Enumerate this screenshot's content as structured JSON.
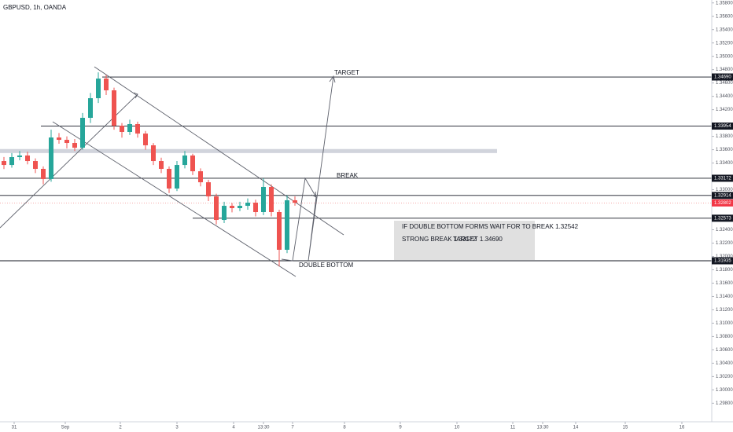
{
  "chart_data": {
    "type": "candlestick",
    "title": "GBPUSD, 1h, OANDA",
    "ylim": [
      1.29545,
      1.35844
    ],
    "xlim": [
      0,
      90.5
    ],
    "up_color": "#26a69a",
    "down_color": "#ef5350",
    "yticks": [
      {
        "value": 1.358,
        "label": "1.35800"
      },
      {
        "value": 1.356,
        "label": "1.35600"
      },
      {
        "value": 1.354,
        "label": "1.35400"
      },
      {
        "value": 1.352,
        "label": "1.35200"
      },
      {
        "value": 1.35,
        "label": "1.35000"
      },
      {
        "value": 1.348,
        "label": "1.34800"
      },
      {
        "value": 1.346,
        "label": "1.34600"
      },
      {
        "value": 1.344,
        "label": "1.34400"
      },
      {
        "value": 1.342,
        "label": "1.34200"
      },
      {
        "value": 1.338,
        "label": "1.33800"
      },
      {
        "value": 1.336,
        "label": "1.33600"
      },
      {
        "value": 1.334,
        "label": "1.33400"
      },
      {
        "value": 1.33,
        "label": "1.33000"
      },
      {
        "value": 1.324,
        "label": "1.32400"
      },
      {
        "value": 1.322,
        "label": "1.32200"
      },
      {
        "value": 1.32,
        "label": "1.32000"
      },
      {
        "value": 1.318,
        "label": "1.31800"
      },
      {
        "value": 1.316,
        "label": "1.31600"
      },
      {
        "value": 1.314,
        "label": "1.31400"
      },
      {
        "value": 1.312,
        "label": "1.31200"
      },
      {
        "value": 1.31,
        "label": "1.31000"
      },
      {
        "value": 1.308,
        "label": "1.30800"
      },
      {
        "value": 1.306,
        "label": "1.30600"
      },
      {
        "value": 1.304,
        "label": "1.30400"
      },
      {
        "value": 1.302,
        "label": "1.30200"
      },
      {
        "value": 1.3,
        "label": "1.30000"
      },
      {
        "value": 1.298,
        "label": "1.29800"
      }
    ],
    "xticks": [
      {
        "value": 1.8,
        "label": "31"
      },
      {
        "value": 8.3,
        "label": "Sep"
      },
      {
        "value": 15.3,
        "label": "2"
      },
      {
        "value": 22.5,
        "label": "3"
      },
      {
        "value": 29.7,
        "label": "4"
      },
      {
        "value": 33.5,
        "label": "13:30"
      },
      {
        "value": 37.2,
        "label": "7"
      },
      {
        "value": 43.8,
        "label": "8"
      },
      {
        "value": 50.9,
        "label": "9"
      },
      {
        "value": 58.1,
        "label": "10"
      },
      {
        "value": 65.2,
        "label": "11"
      },
      {
        "value": 69,
        "label": "13:30"
      },
      {
        "value": 73.2,
        "label": "14"
      },
      {
        "value": 79.5,
        "label": "15"
      },
      {
        "value": 86.7,
        "label": "16"
      }
    ],
    "candles": [
      {
        "open": 1.3343,
        "high": 1.3349,
        "low": 1.3331,
        "close": 1.33371
      },
      {
        "open": 1.33371,
        "high": 1.3355,
        "low": 1.3333,
        "close": 1.33489
      },
      {
        "open": 1.33489,
        "high": 1.3358,
        "low": 1.3344,
        "close": 1.33513
      },
      {
        "open": 1.33513,
        "high": 1.3357,
        "low": 1.3338,
        "close": 1.3343
      },
      {
        "open": 1.3343,
        "high": 1.3347,
        "low": 1.3325,
        "close": 1.33313
      },
      {
        "open": 1.33313,
        "high": 1.3335,
        "low": 1.3308,
        "close": 1.3316
      },
      {
        "open": 1.3316,
        "high": 1.339,
        "low": 1.3312,
        "close": 1.33783
      },
      {
        "open": 1.33783,
        "high": 1.3385,
        "low": 1.3369,
        "close": 1.33748
      },
      {
        "open": 1.33748,
        "high": 1.338,
        "low": 1.3362,
        "close": 1.33701
      },
      {
        "open": 1.33701,
        "high": 1.3376,
        "low": 1.3358,
        "close": 1.3363
      },
      {
        "open": 1.3363,
        "high": 1.3415,
        "low": 1.336,
        "close": 1.34078
      },
      {
        "open": 1.34078,
        "high": 1.3445,
        "low": 1.34,
        "close": 1.34372
      },
      {
        "open": 1.34372,
        "high": 1.3476,
        "low": 1.343,
        "close": 1.34666
      },
      {
        "open": 1.34666,
        "high": 1.3472,
        "low": 1.3442,
        "close": 1.3449
      },
      {
        "open": 1.3449,
        "high": 1.3453,
        "low": 1.339,
        "close": 1.3396
      },
      {
        "open": 1.3396,
        "high": 1.34,
        "low": 1.3378,
        "close": 1.33866
      },
      {
        "open": 1.33866,
        "high": 1.3405,
        "low": 1.3382,
        "close": 1.33984
      },
      {
        "open": 1.33984,
        "high": 1.3402,
        "low": 1.3378,
        "close": 1.33842
      },
      {
        "open": 1.33842,
        "high": 1.3388,
        "low": 1.336,
        "close": 1.33666
      },
      {
        "open": 1.33666,
        "high": 1.337,
        "low": 1.3337,
        "close": 1.3343
      },
      {
        "open": 1.3343,
        "high": 1.3348,
        "low": 1.3325,
        "close": 1.33313
      },
      {
        "open": 1.33313,
        "high": 1.3335,
        "low": 1.3295,
        "close": 1.33018
      },
      {
        "open": 1.33018,
        "high": 1.3343,
        "low": 1.3298,
        "close": 1.33371
      },
      {
        "open": 1.33371,
        "high": 1.3358,
        "low": 1.3332,
        "close": 1.33513
      },
      {
        "open": 1.33513,
        "high": 1.3354,
        "low": 1.3322,
        "close": 1.33277
      },
      {
        "open": 1.33277,
        "high": 1.3332,
        "low": 1.3305,
        "close": 1.33112
      },
      {
        "open": 1.33112,
        "high": 1.3315,
        "low": 1.3283,
        "close": 1.329
      },
      {
        "open": 1.329,
        "high": 1.3294,
        "low": 1.3248,
        "close": 1.32547
      },
      {
        "open": 1.32547,
        "high": 1.3282,
        "low": 1.325,
        "close": 1.32759
      },
      {
        "open": 1.32759,
        "high": 1.328,
        "low": 1.3266,
        "close": 1.32724
      },
      {
        "open": 1.32724,
        "high": 1.3282,
        "low": 1.3268,
        "close": 1.32759
      },
      {
        "open": 1.32759,
        "high": 1.3287,
        "low": 1.327,
        "close": 1.32806
      },
      {
        "open": 1.32806,
        "high": 1.3285,
        "low": 1.326,
        "close": 1.32665
      },
      {
        "open": 1.32665,
        "high": 1.33172,
        "low": 1.3262,
        "close": 1.33042
      },
      {
        "open": 1.33042,
        "high": 1.3308,
        "low": 1.326,
        "close": 1.32665
      },
      {
        "open": 1.32665,
        "high": 1.327,
        "low": 1.3185,
        "close": 1.321
      },
      {
        "open": 1.321,
        "high": 1.32914,
        "low": 1.3205,
        "close": 1.32842
      },
      {
        "open": 1.32842,
        "high": 1.329,
        "low": 1.3276,
        "close": 1.32806
      }
    ],
    "levels": [
      {
        "value": 1.3469,
        "label": "1.34690"
      },
      {
        "value": 1.33954,
        "label": "1.33954"
      },
      {
        "value": 1.33172,
        "label": "1.33172"
      },
      {
        "value": 1.32914,
        "label": "1.32914"
      },
      {
        "value": 1.32573,
        "label": "1.32573"
      },
      {
        "value": 1.31935,
        "label": "1.31935"
      }
    ],
    "last_price": {
      "value": 1.32802,
      "label": "1.32802"
    },
    "zone": [
      1.3355,
      1.3361
    ],
    "zone_x": [
      0,
      63.2
    ],
    "annotations": {
      "target": "TARGET",
      "break": "BREAK",
      "double_bottom": "DOUBLE BOTTOM",
      "note_line1": "IF DOUBLE BOTTOM FORMS WAIT FOR TO BREAK 1.32542",
      "note_line2a": "STRONG BREAK 1.33172",
      "note_line2b": "TARGET 1.34690"
    }
  }
}
